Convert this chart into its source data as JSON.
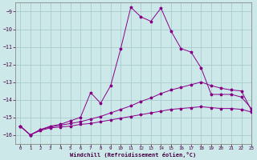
{
  "xlabel": "Windchill (Refroidissement éolien,°C)",
  "xlim": [
    -0.5,
    23
  ],
  "ylim": [
    -16.5,
    -8.5
  ],
  "yticks": [
    -16,
    -15,
    -14,
    -13,
    -12,
    -11,
    -10,
    -9
  ],
  "xticks": [
    0,
    1,
    2,
    3,
    4,
    5,
    6,
    7,
    8,
    9,
    10,
    11,
    12,
    13,
    14,
    15,
    16,
    17,
    18,
    19,
    20,
    21,
    22,
    23
  ],
  "bg_color": "#cde8e8",
  "grid_color": "#aacccc",
  "line_color": "#880088",
  "line1_x": [
    0,
    1,
    2,
    3,
    4,
    5,
    6,
    7,
    8,
    9,
    10,
    11,
    12,
    13,
    14,
    15,
    16,
    17,
    18,
    19,
    20,
    21,
    22,
    23
  ],
  "line1_y": [
    -15.5,
    -16.0,
    -15.7,
    -15.5,
    -15.4,
    -15.2,
    -15.0,
    -13.6,
    -14.2,
    -13.2,
    -11.1,
    -8.75,
    -9.3,
    -9.55,
    -8.8,
    -10.1,
    -11.1,
    -11.3,
    -12.2,
    -13.7,
    -13.7,
    -13.7,
    -13.85,
    -14.5
  ],
  "line2_x": [
    0,
    1,
    2,
    3,
    4,
    5,
    6,
    7,
    8,
    9,
    10,
    11,
    12,
    13,
    14,
    15,
    16,
    17,
    18,
    19,
    20,
    21,
    22,
    23
  ],
  "line2_y": [
    -15.5,
    -16.0,
    -15.7,
    -15.55,
    -15.45,
    -15.35,
    -15.25,
    -15.1,
    -14.95,
    -14.75,
    -14.55,
    -14.35,
    -14.1,
    -13.9,
    -13.65,
    -13.45,
    -13.3,
    -13.15,
    -13.0,
    -13.2,
    -13.35,
    -13.45,
    -13.5,
    -14.6
  ],
  "line3_x": [
    0,
    1,
    2,
    3,
    4,
    5,
    6,
    7,
    8,
    9,
    10,
    11,
    12,
    13,
    14,
    15,
    16,
    17,
    18,
    19,
    20,
    21,
    22,
    23
  ],
  "line3_y": [
    -15.5,
    -16.0,
    -15.75,
    -15.6,
    -15.55,
    -15.5,
    -15.4,
    -15.35,
    -15.25,
    -15.15,
    -15.05,
    -14.95,
    -14.85,
    -14.75,
    -14.65,
    -14.55,
    -14.5,
    -14.45,
    -14.4,
    -14.45,
    -14.5,
    -14.5,
    -14.55,
    -14.7
  ]
}
